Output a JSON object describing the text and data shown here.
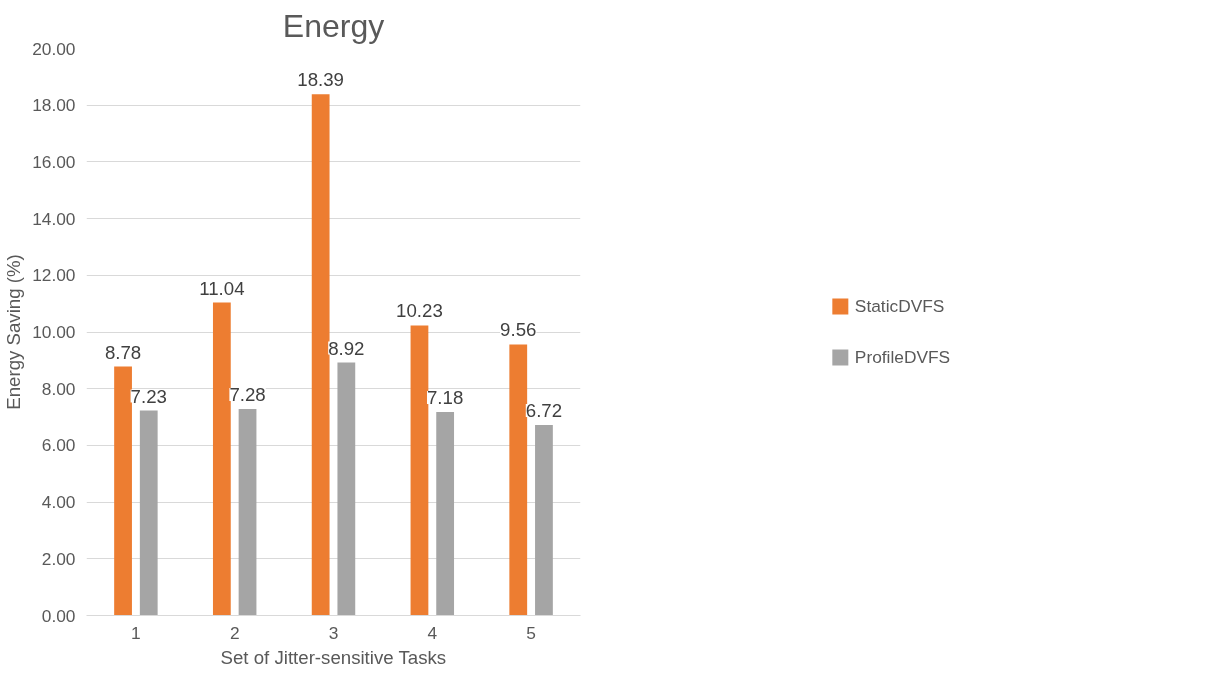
{
  "chart_data": {
    "type": "bar",
    "title": "Energy",
    "xlabel": "Set of Jitter-sensitive Tasks",
    "ylabel": "Energy Saving (%)",
    "categories": [
      "1",
      "2",
      "3",
      "4",
      "5"
    ],
    "series": [
      {
        "name": "StaticDVFS",
        "color": "#ed7d31",
        "values": [
          8.78,
          11.04,
          18.39,
          10.23,
          9.56
        ]
      },
      {
        "name": "ProfileDVFS",
        "color": "#a5a5a5",
        "values": [
          7.23,
          7.28,
          8.92,
          7.18,
          6.72
        ]
      }
    ],
    "ylim": [
      0,
      20
    ],
    "yticks": [
      {
        "value": 0,
        "label": "0.00"
      },
      {
        "value": 2,
        "label": "2.00"
      },
      {
        "value": 4,
        "label": "4.00"
      },
      {
        "value": 6,
        "label": "6.00"
      },
      {
        "value": 8,
        "label": "8.00"
      },
      {
        "value": 10,
        "label": "10.00"
      },
      {
        "value": 12,
        "label": "12.00"
      },
      {
        "value": 14,
        "label": "14.00"
      },
      {
        "value": 16,
        "label": "16.00"
      },
      {
        "value": 18,
        "label": "18.00"
      },
      {
        "value": 20,
        "label": "20.00"
      }
    ],
    "grid": "y",
    "legend": "right",
    "data_labels": true
  }
}
